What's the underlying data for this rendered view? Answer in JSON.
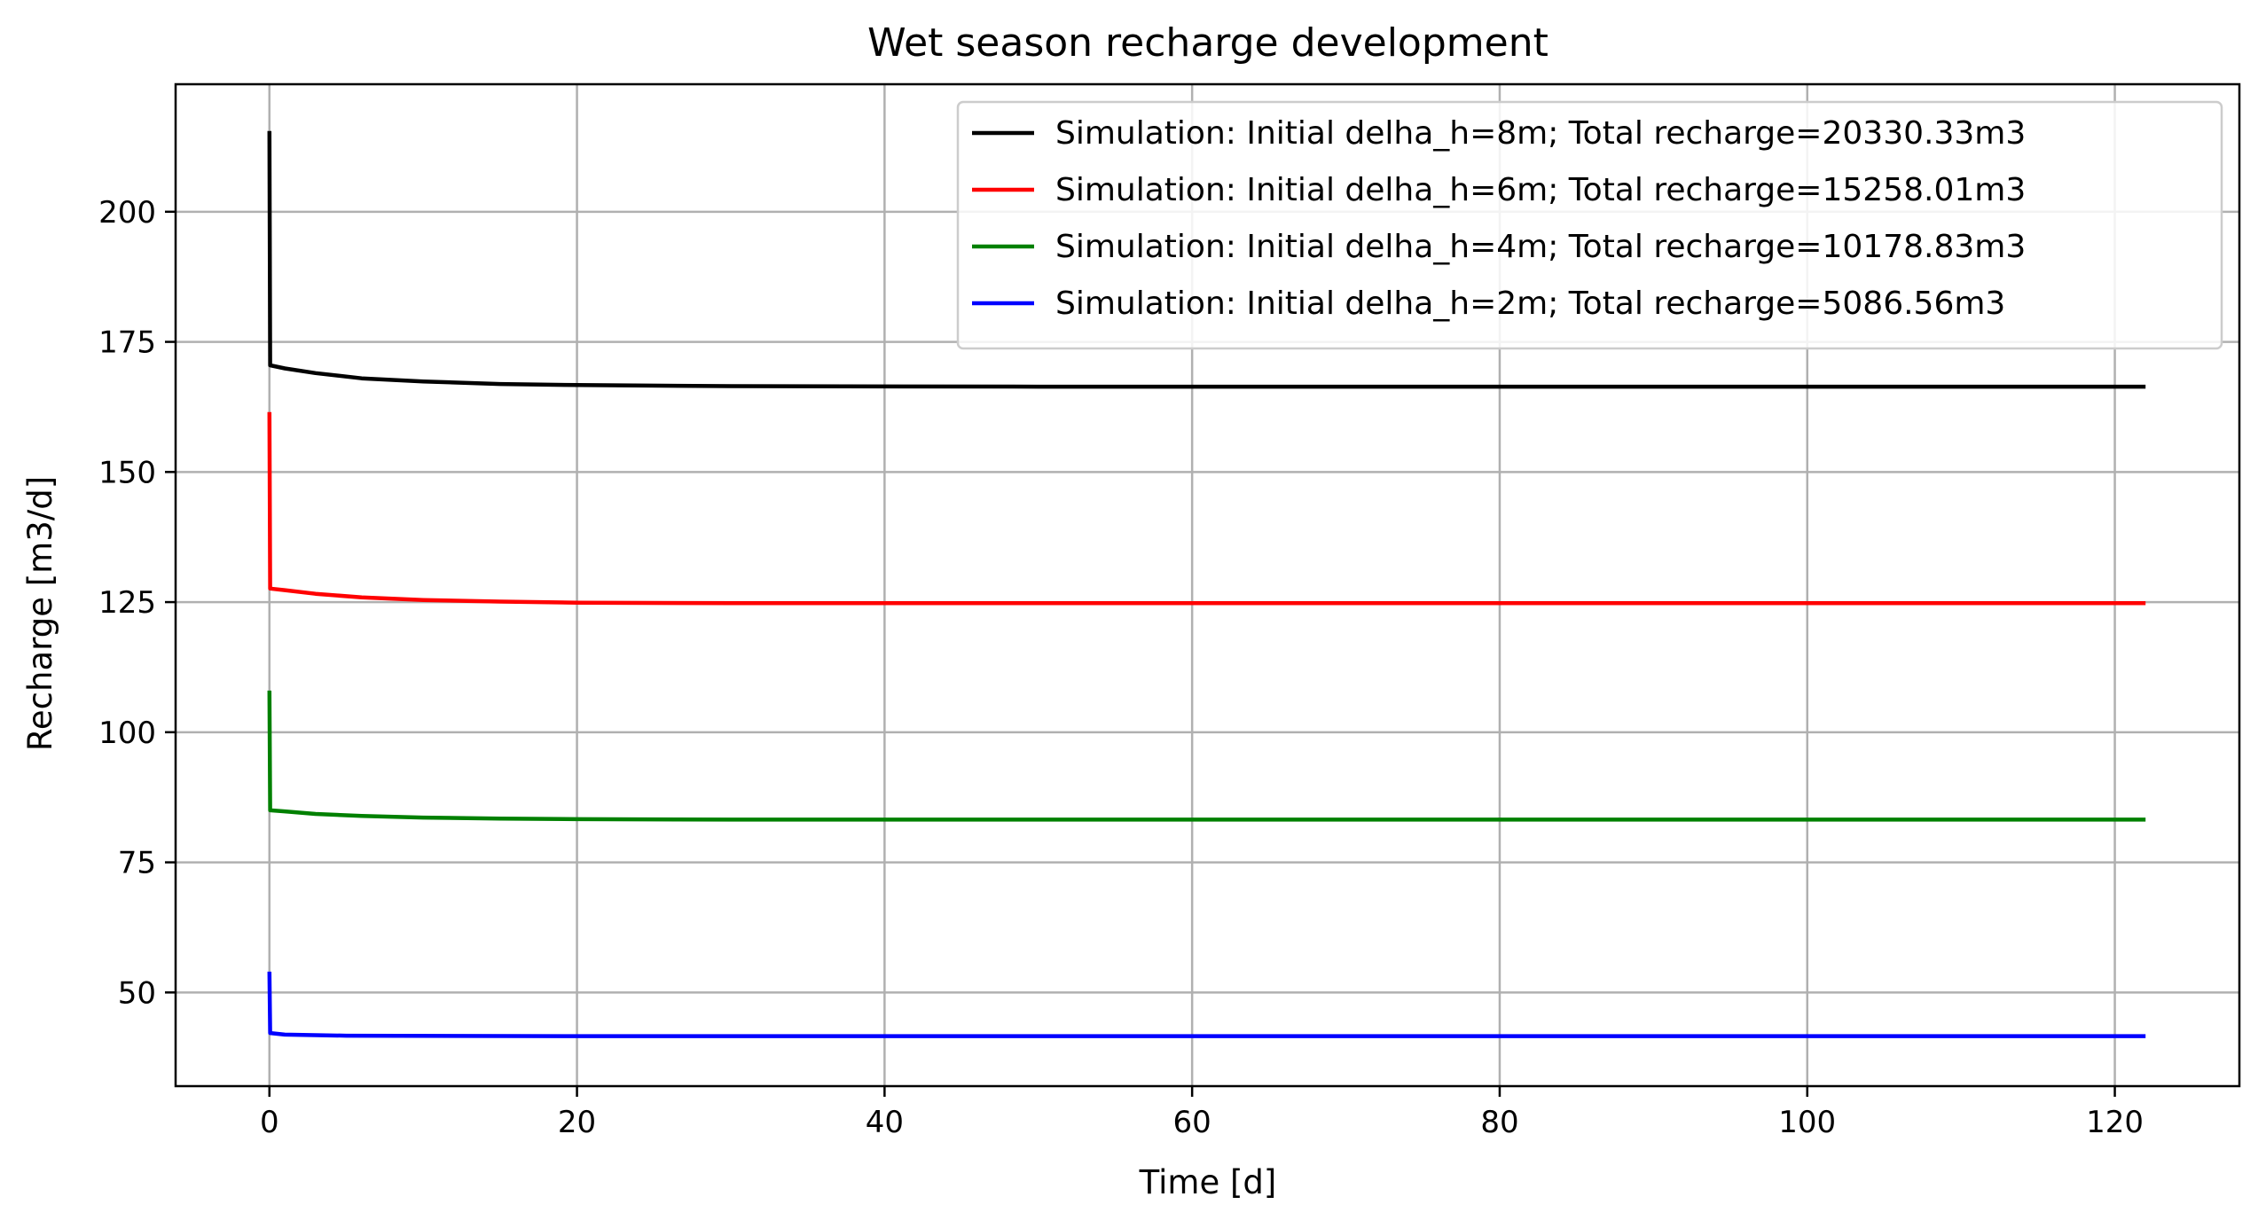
{
  "chart_data": {
    "type": "line",
    "title": "Wet season recharge development",
    "xlabel": "Time [d]",
    "ylabel": "Recharge [m3/d]",
    "xlim": [
      -6.1,
      128.1
    ],
    "ylim": [
      32.0,
      224.5
    ],
    "xticks": [
      0,
      20,
      40,
      60,
      80,
      100,
      120
    ],
    "yticks": [
      50,
      75,
      100,
      125,
      150,
      175,
      200
    ],
    "grid": true,
    "legend_position": "top-right",
    "series": [
      {
        "name": "Simulation: Initial delha_h=8m; Total recharge=20330.33m3",
        "color": "#000000",
        "points": [
          [
            0,
            215.5
          ],
          [
            0.05,
            170.5
          ],
          [
            1,
            169.9
          ],
          [
            3,
            169.0
          ],
          [
            6,
            168.0
          ],
          [
            10,
            167.4
          ],
          [
            15,
            166.9
          ],
          [
            20,
            166.7
          ],
          [
            30,
            166.5
          ],
          [
            50,
            166.4
          ],
          [
            80,
            166.4
          ],
          [
            122,
            166.4
          ]
        ]
      },
      {
        "name": "Simulation: Initial delha_h=6m; Total recharge=15258.01m3",
        "color": "#ff0000",
        "points": [
          [
            0,
            161.5
          ],
          [
            0.05,
            127.6
          ],
          [
            1,
            127.3
          ],
          [
            3,
            126.6
          ],
          [
            6,
            125.9
          ],
          [
            10,
            125.4
          ],
          [
            15,
            125.1
          ],
          [
            20,
            124.9
          ],
          [
            30,
            124.8
          ],
          [
            50,
            124.8
          ],
          [
            80,
            124.8
          ],
          [
            122,
            124.8
          ]
        ]
      },
      {
        "name": "Simulation: Initial delha_h=4m; Total recharge=10178.83m3",
        "color": "#008000",
        "points": [
          [
            0,
            108.0
          ],
          [
            0.05,
            85.0
          ],
          [
            1,
            84.8
          ],
          [
            3,
            84.3
          ],
          [
            6,
            83.9
          ],
          [
            10,
            83.6
          ],
          [
            15,
            83.4
          ],
          [
            20,
            83.3
          ],
          [
            30,
            83.2
          ],
          [
            50,
            83.2
          ],
          [
            80,
            83.2
          ],
          [
            122,
            83.2
          ]
        ]
      },
      {
        "name": "Simulation: Initial delha_h=2m; Total recharge=5086.56m3",
        "color": "#0000ff",
        "points": [
          [
            0,
            54.0
          ],
          [
            0.05,
            42.2
          ],
          [
            1,
            41.9
          ],
          [
            5,
            41.7
          ],
          [
            20,
            41.6
          ],
          [
            60,
            41.6
          ],
          [
            122,
            41.6
          ]
        ]
      }
    ]
  }
}
